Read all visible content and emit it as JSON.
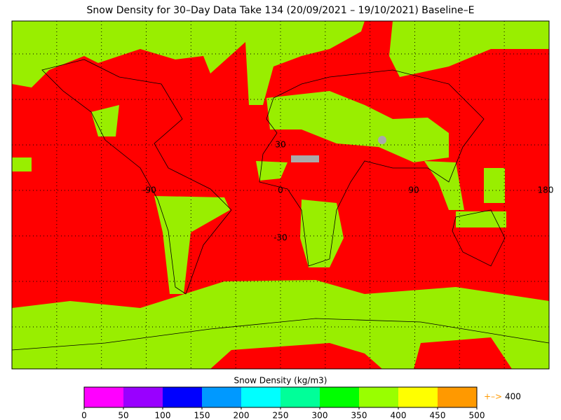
{
  "title": "Snow Density for 30–Day Data Take 134 (20/09/2021 – 19/10/2021) Baseline–E",
  "map_labels": [
    "30",
    "0",
    "-90",
    "-30",
    "90",
    "180"
  ],
  "colorbar": {
    "label": "Snow Density (kg/m3)",
    "ticks": [
      0,
      50,
      100,
      150,
      200,
      250,
      300,
      350,
      400,
      450,
      500
    ],
    "colors": [
      "#ff00ff",
      "#9900ff",
      "#0000ff",
      "#0099ff",
      "#00ffff",
      "#00ff99",
      "#00ff00",
      "#99ff00",
      "#ffff00",
      "#ff9900"
    ],
    "out_of_range": {
      "symbol": "+–>",
      "text": "400",
      "color": "#ff9900"
    }
  }
}
